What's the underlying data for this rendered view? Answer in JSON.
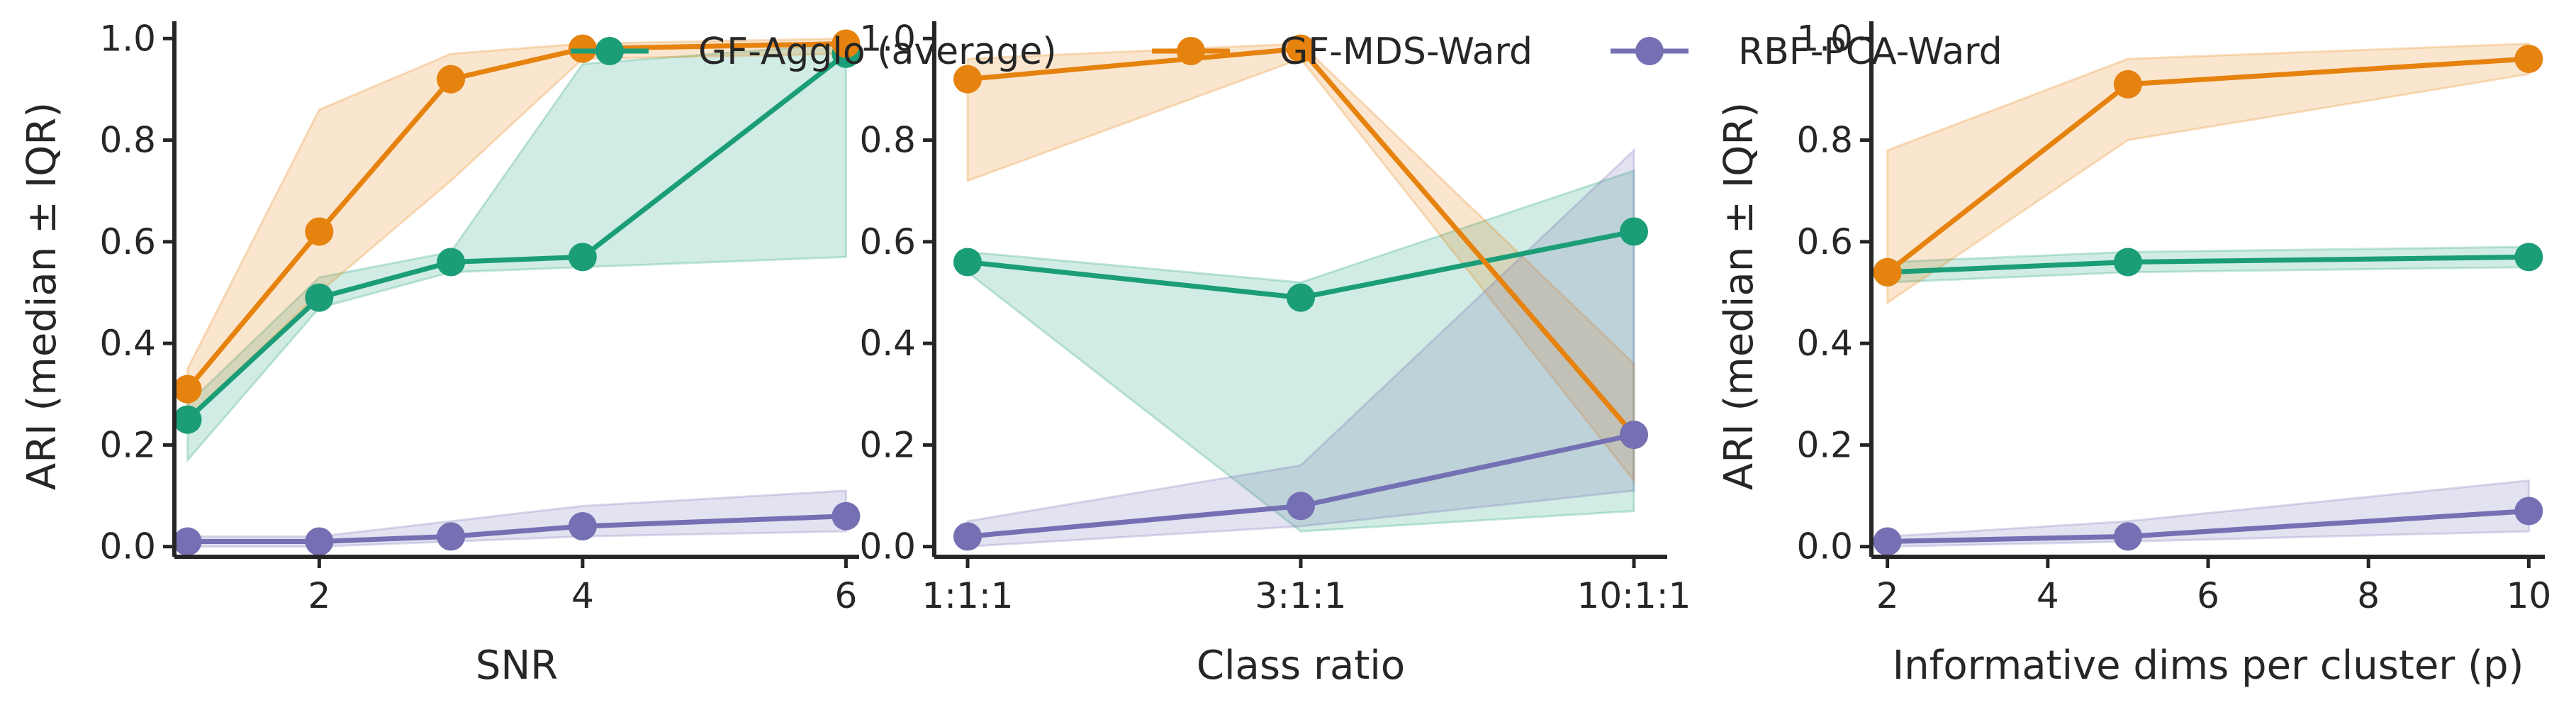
{
  "legend": {
    "placement": "top-center",
    "entries": [
      {
        "name": "GF-Agglo (average)",
        "color": "#1b9e77"
      },
      {
        "name": "GF-MDS-Ward",
        "color": "#e6820e"
      },
      {
        "name": "RBF-PCA-Ward",
        "color": "#7570b3"
      }
    ]
  },
  "chart_data": [
    {
      "type": "line",
      "xlabel": "SNR",
      "ylabel": "ARI (median ± IQR)",
      "x_scale": "linear",
      "xlim": [
        0.9,
        6.1
      ],
      "ylim": [
        -0.02,
        1.02
      ],
      "xticks": [
        2,
        4,
        6
      ],
      "xtick_labels": [
        "2",
        "4",
        "6"
      ],
      "yticks": [
        0.0,
        0.2,
        0.4,
        0.6,
        0.8,
        1.0
      ],
      "ytick_labels": [
        "0.0",
        "0.2",
        "0.4",
        "0.6",
        "0.8",
        "1.0"
      ],
      "x": [
        1,
        2,
        3,
        4,
        6
      ],
      "series": [
        {
          "name": "GF-Agglo (average)",
          "color": "#1b9e77",
          "values": [
            0.25,
            0.49,
            0.56,
            0.57,
            0.97
          ],
          "lower": [
            0.17,
            0.47,
            0.54,
            0.55,
            0.57
          ],
          "upper": [
            0.28,
            0.53,
            0.58,
            0.95,
            0.99
          ]
        },
        {
          "name": "GF-MDS-Ward",
          "color": "#e6820e",
          "values": [
            0.31,
            0.62,
            0.92,
            0.98,
            0.99
          ],
          "lower": [
            0.25,
            0.5,
            0.72,
            0.96,
            0.97
          ],
          "upper": [
            0.35,
            0.86,
            0.97,
            0.99,
            1.0
          ]
        },
        {
          "name": "RBF-PCA-Ward",
          "color": "#7570b3",
          "values": [
            0.01,
            0.01,
            0.02,
            0.04,
            0.06
          ],
          "lower": [
            0.0,
            0.0,
            0.01,
            0.02,
            0.03
          ],
          "upper": [
            0.02,
            0.02,
            0.05,
            0.08,
            0.11
          ]
        }
      ]
    },
    {
      "type": "line",
      "xlabel": "Class ratio",
      "ylabel": "",
      "x_scale": "categorical",
      "xlim": [
        -0.1,
        2.1
      ],
      "ylim": [
        -0.02,
        1.02
      ],
      "xticks": [
        0,
        1,
        2
      ],
      "xtick_labels": [
        "1:1:1",
        "3:1:1",
        "10:1:1"
      ],
      "yticks": [
        0.0,
        0.2,
        0.4,
        0.6,
        0.8,
        1.0
      ],
      "ytick_labels": [
        "0.0",
        "0.2",
        "0.4",
        "0.6",
        "0.8",
        "1.0"
      ],
      "x": [
        0,
        1,
        2
      ],
      "series": [
        {
          "name": "GF-Agglo (average)",
          "color": "#1b9e77",
          "values": [
            0.56,
            0.49,
            0.62
          ],
          "lower": [
            0.54,
            0.03,
            0.07
          ],
          "upper": [
            0.58,
            0.52,
            0.74
          ]
        },
        {
          "name": "GF-MDS-Ward",
          "color": "#e6820e",
          "values": [
            0.92,
            0.98,
            0.22
          ],
          "lower": [
            0.72,
            0.96,
            0.13
          ],
          "upper": [
            0.96,
            0.99,
            0.36
          ]
        },
        {
          "name": "RBF-PCA-Ward",
          "color": "#7570b3",
          "values": [
            0.02,
            0.08,
            0.22
          ],
          "lower": [
            0.0,
            0.04,
            0.11
          ],
          "upper": [
            0.05,
            0.16,
            0.78
          ]
        }
      ]
    },
    {
      "type": "line",
      "xlabel": "Informative dims per cluster (p)",
      "ylabel": "ARI (median ± IQR)",
      "x_scale": "linear",
      "xlim": [
        1.8,
        10.2
      ],
      "ylim": [
        -0.02,
        1.02
      ],
      "xticks": [
        2,
        4,
        6,
        8,
        10
      ],
      "xtick_labels": [
        "2",
        "4",
        "6",
        "8",
        "10"
      ],
      "yticks": [
        0.0,
        0.2,
        0.4,
        0.6,
        0.8,
        1.0
      ],
      "ytick_labels": [
        "0.0",
        "0.2",
        "0.4",
        "0.6",
        "0.8",
        "1.0"
      ],
      "x": [
        2,
        5,
        10
      ],
      "series": [
        {
          "name": "GF-Agglo (average)",
          "color": "#1b9e77",
          "values": [
            0.54,
            0.56,
            0.57
          ],
          "lower": [
            0.52,
            0.54,
            0.55
          ],
          "upper": [
            0.56,
            0.58,
            0.59
          ]
        },
        {
          "name": "GF-MDS-Ward",
          "color": "#e6820e",
          "values": [
            0.54,
            0.91,
            0.96
          ],
          "lower": [
            0.48,
            0.8,
            0.93
          ],
          "upper": [
            0.78,
            0.96,
            0.99
          ]
        },
        {
          "name": "RBF-PCA-Ward",
          "color": "#7570b3",
          "values": [
            0.01,
            0.02,
            0.07
          ],
          "lower": [
            0.0,
            0.01,
            0.03
          ],
          "upper": [
            0.02,
            0.05,
            0.13
          ]
        }
      ]
    }
  ]
}
